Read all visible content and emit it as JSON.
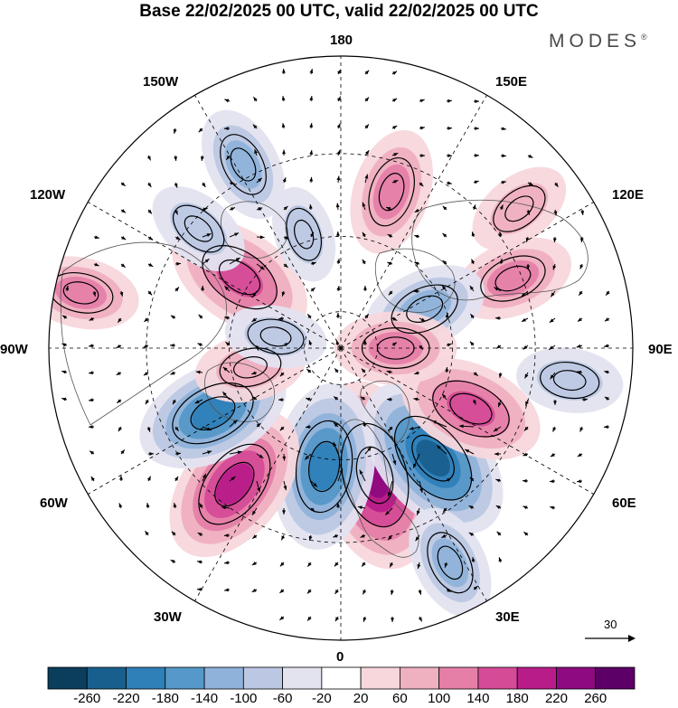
{
  "title": "Base 22/02/2025 00 UTC, valid 22/02/2025 00 UTC",
  "brand": "MODES",
  "brand_mark": "®",
  "longitude_labels": {
    "lon_180": "180",
    "lon_150e": "150E",
    "lon_120e": "120E",
    "lon_90e": "90E",
    "lon_60e": "60E",
    "lon_30e": "30E",
    "lon_0": "0",
    "lon_30w": "30W",
    "lon_60w": "60W",
    "lon_90w": "90W",
    "lon_120w": "120W",
    "lon_150w": "150W"
  },
  "reference_vector": {
    "label": "30"
  },
  "colorbar": {
    "labels": [
      "-260",
      "-220",
      "-180",
      "-140",
      "-100",
      "-60",
      "-20",
      "20",
      "60",
      "100",
      "140",
      "180",
      "220",
      "260"
    ],
    "colors": [
      "#0b3d5c",
      "#195f8e",
      "#2f7fb8",
      "#5598c9",
      "#8fb2da",
      "#bcc8e3",
      "#e3e3f0",
      "#ffffff",
      "#f7d7dc",
      "#efb0c0",
      "#e57fa8",
      "#d54b96",
      "#b81c88",
      "#8e0a80",
      "#5c0068"
    ]
  },
  "map_fields": {
    "projection": "north-polar-stereographic",
    "anomalies": [
      {
        "lon": 15,
        "lat": 55,
        "value": 250
      },
      {
        "lon": 352,
        "lat": 58,
        "value": -200
      },
      {
        "lon": 40,
        "lat": 52,
        "value": -220
      },
      {
        "lon": 322,
        "lat": 45,
        "value": 200
      },
      {
        "lon": 297,
        "lat": 52,
        "value": -180
      },
      {
        "lon": 65,
        "lat": 52,
        "value": 160
      },
      {
        "lon": 27,
        "lat": 30,
        "value": -100
      },
      {
        "lon": 235,
        "lat": 57,
        "value": 170
      },
      {
        "lon": 208,
        "lat": 37,
        "value": -100
      },
      {
        "lon": 230,
        "lat": 42,
        "value": -80
      },
      {
        "lon": 162,
        "lat": 47,
        "value": 120
      },
      {
        "lon": 112,
        "lat": 42,
        "value": 110
      },
      {
        "lon": 115,
        "lat": 65,
        "value": -120
      },
      {
        "lon": 90,
        "lat": 75,
        "value": 110
      },
      {
        "lon": 82,
        "lat": 32,
        "value": -80
      },
      {
        "lon": 258,
        "lat": 25,
        "value": 100
      },
      {
        "lon": 282,
        "lat": 65,
        "value": 90
      },
      {
        "lon": 260,
        "lat": 72,
        "value": -70
      },
      {
        "lon": 198,
        "lat": 58,
        "value": -60
      },
      {
        "lon": 128,
        "lat": 33,
        "value": 80
      }
    ]
  }
}
